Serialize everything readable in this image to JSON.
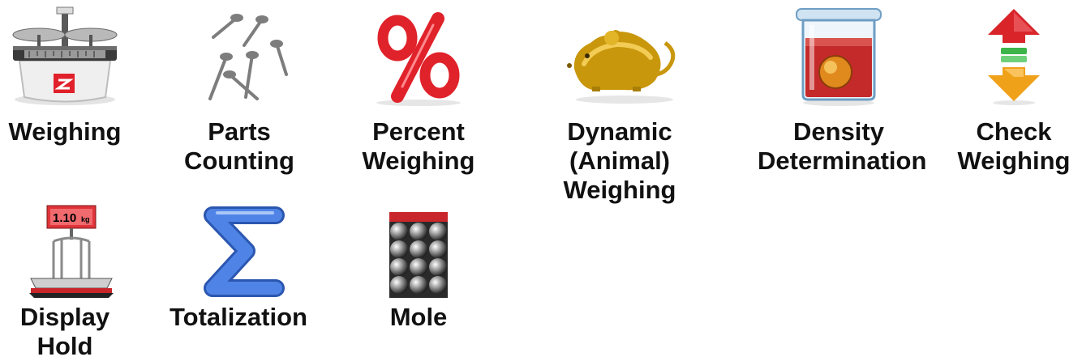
{
  "modes": [
    {
      "id": "weighing",
      "lines": [
        "Weighing"
      ],
      "icon": "scale-icon"
    },
    {
      "id": "parts",
      "lines": [
        "Parts",
        "Counting"
      ],
      "icon": "nails-icon"
    },
    {
      "id": "percent",
      "lines": [
        "Percent",
        "Weighing"
      ],
      "icon": "percent-icon"
    },
    {
      "id": "dynamic",
      "lines": [
        "Dynamic",
        "(Animal)",
        "Weighing"
      ],
      "icon": "mouse-icon"
    },
    {
      "id": "density",
      "lines": [
        "Density",
        "Determination"
      ],
      "icon": "beaker-icon"
    },
    {
      "id": "check",
      "lines": [
        "Check",
        "Weighing"
      ],
      "icon": "check-arrows-icon"
    },
    {
      "id": "hold",
      "lines": [
        "Display",
        "Hold"
      ],
      "icon": "display-hold-icon"
    },
    {
      "id": "totalize",
      "lines": [
        "Totalization"
      ],
      "icon": "sigma-icon"
    },
    {
      "id": "mole",
      "lines": [
        "Mole"
      ],
      "icon": "spheres-icon"
    }
  ],
  "icon_texts": {
    "display_hold_reading": "1.10",
    "display_hold_unit": "kg"
  },
  "colors": {
    "percent_red": "#e0222a",
    "mouse_gold": "#c9970c",
    "beaker_red": "#c42a2a",
    "arrow_red": "#d9252a",
    "arrow_green": "#3db54a",
    "arrow_orange": "#f0a11a",
    "sigma_blue": "#3f73d6",
    "mole_bar_red": "#c8262a",
    "ohaus_red": "#e0202a"
  }
}
